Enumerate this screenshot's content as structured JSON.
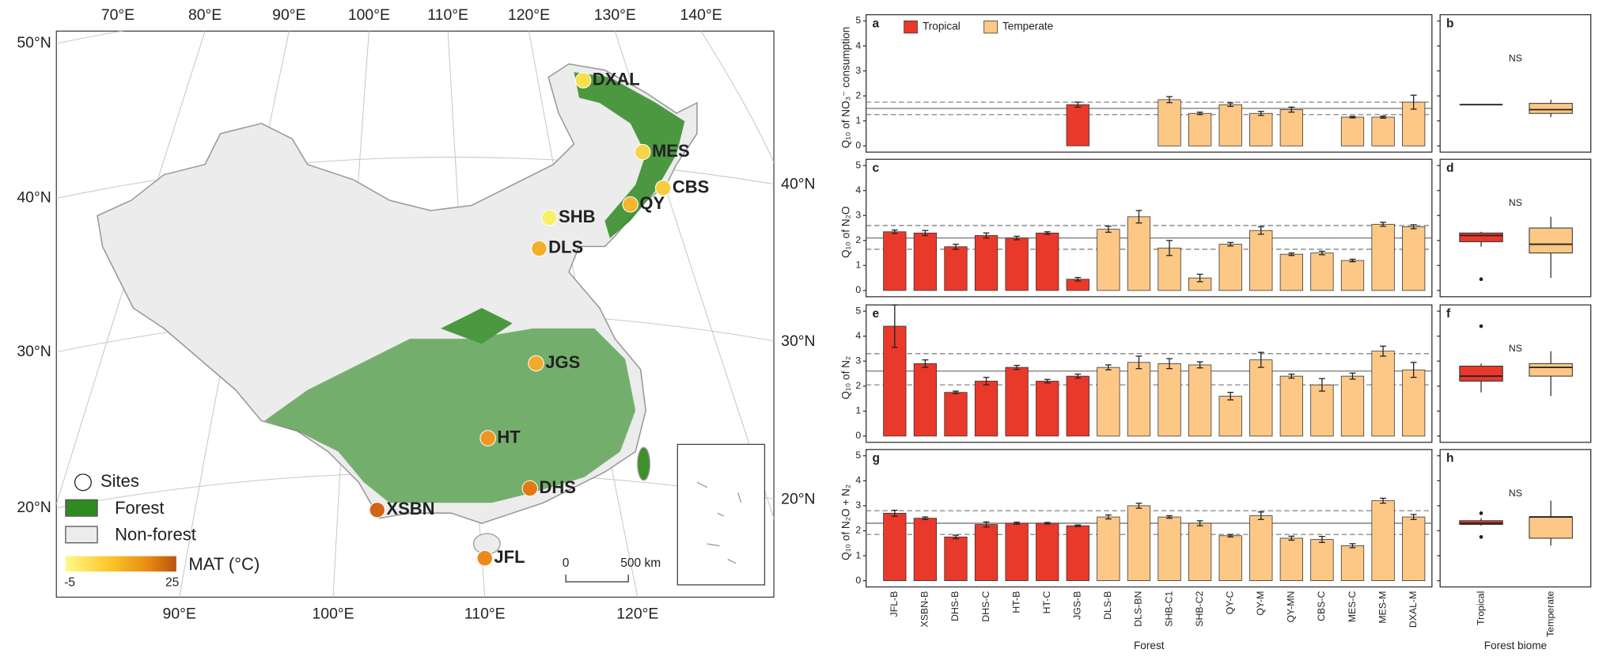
{
  "map": {
    "lon_top": [
      "70°E",
      "80°E",
      "90°E",
      "100°E",
      "110°E",
      "120°E",
      "130°E",
      "140°E"
    ],
    "lon_bottom": [
      "90°E",
      "100°E",
      "110°E",
      "120°E"
    ],
    "lat_left": [
      "50°N",
      "40°N",
      "30°N",
      "20°N"
    ],
    "lat_right": [
      "40°N",
      "30°N",
      "20°N"
    ],
    "sites": [
      {
        "name": "DXAL",
        "color": "#f7e04a"
      },
      {
        "name": "MES",
        "color": "#f8d446"
      },
      {
        "name": "CBS",
        "color": "#f6cc40"
      },
      {
        "name": "QY",
        "color": "#f4b530"
      },
      {
        "name": "SHB",
        "color": "#f9ef6a"
      },
      {
        "name": "DLS",
        "color": "#f3ae2c"
      },
      {
        "name": "JGS",
        "color": "#f2ab28"
      },
      {
        "name": "HT",
        "color": "#ee981f"
      },
      {
        "name": "DHS",
        "color": "#e27912"
      },
      {
        "name": "XSBN",
        "color": "#d26415"
      },
      {
        "name": "JFL",
        "color": "#eb8a1a"
      }
    ],
    "legend": {
      "sites": "Sites",
      "forest": "Forest",
      "non_forest": "Non-forest",
      "mat": "MAT (°C)",
      "mat_range": [
        -5,
        25
      ]
    },
    "scale_bar": [
      "0",
      "500 km"
    ]
  },
  "chart_data": [
    {
      "type": "bar",
      "xlabel": "Forest",
      "categories": [
        "JFL-B",
        "XSBN-B",
        "DHS-B",
        "DHS-C",
        "HT-B",
        "HT-C",
        "JGS-B",
        "DLS-B",
        "DLS-BN",
        "SHB-C1",
        "SHB-C2",
        "QY-C",
        "QY-M",
        "QY-MN",
        "CBS-C",
        "MES-C",
        "MES-M",
        "DXAL-M"
      ],
      "legend": [
        {
          "name": "Tropical",
          "color": "#e8392b"
        },
        {
          "name": "Temperate",
          "color": "#fdc886"
        }
      ],
      "ylim": [
        -0.25,
        5.25
      ],
      "yticks": [
        0,
        1,
        2,
        3,
        4,
        5
      ],
      "panels": [
        {
          "letter": "a",
          "ylabel": "Q₁₀ of NO₃⁻ consumption",
          "reference_lines": {
            "solid": 1.5,
            "dashed": [
              1.25,
              1.75
            ]
          },
          "series": [
            {
              "values": [
                null,
                null,
                null,
                null,
                null,
                null,
                1.65,
                null,
                null,
                null,
                null,
                null,
                null,
                null,
                null,
                null,
                null,
                null
              ],
              "errors": [
                null,
                null,
                null,
                null,
                null,
                null,
                0.1,
                null,
                null,
                null,
                null,
                null,
                null,
                null,
                null,
                null,
                null,
                null
              ]
            },
            {
              "values": [
                null,
                null,
                null,
                null,
                null,
                null,
                null,
                null,
                null,
                1.85,
                1.3,
                1.65,
                1.3,
                1.45,
                null,
                1.15,
                1.15,
                1.75
              ],
              "errors": [
                null,
                null,
                null,
                null,
                null,
                null,
                null,
                null,
                null,
                0.12,
                0.05,
                0.07,
                0.08,
                0.1,
                null,
                0.03,
                0.04,
                0.28
              ]
            }
          ]
        },
        {
          "letter": "c",
          "ylabel": "Q₁₀ of N₂O",
          "reference_lines": {
            "solid": 2.1,
            "dashed": [
              1.65,
              2.6
            ]
          },
          "series": [
            {
              "values": [
                2.35,
                2.3,
                1.75,
                2.2,
                2.1,
                2.3,
                0.45,
                null,
                null,
                null,
                null,
                null,
                null,
                null,
                null,
                null,
                null,
                null
              ],
              "errors": [
                0.07,
                0.1,
                0.1,
                0.1,
                0.07,
                0.05,
                0.07,
                null,
                null,
                null,
                null,
                null,
                null,
                null,
                null,
                null,
                null,
                null
              ]
            },
            {
              "values": [
                null,
                null,
                null,
                null,
                null,
                null,
                null,
                2.45,
                2.95,
                1.7,
                0.5,
                1.85,
                2.4,
                1.45,
                1.5,
                1.2,
                2.65,
                2.55
              ],
              "errors": [
                null,
                null,
                null,
                null,
                null,
                null,
                null,
                0.12,
                0.25,
                0.3,
                0.15,
                0.07,
                0.15,
                0.05,
                0.07,
                0.05,
                0.08,
                0.08
              ]
            }
          ]
        },
        {
          "letter": "e",
          "ylabel": "Q₁₀ of N₂",
          "reference_lines": {
            "solid": 2.6,
            "dashed": [
              2.05,
              3.3
            ]
          },
          "series": [
            {
              "values": [
                4.4,
                2.9,
                1.75,
                2.2,
                2.75,
                2.2,
                2.4,
                null,
                null,
                null,
                null,
                null,
                null,
                null,
                null,
                null,
                null,
                null
              ],
              "errors": [
                0.85,
                0.15,
                0.05,
                0.15,
                0.08,
                0.07,
                0.08,
                null,
                null,
                null,
                null,
                null,
                null,
                null,
                null,
                null,
                null,
                null
              ]
            },
            {
              "values": [
                null,
                null,
                null,
                null,
                null,
                null,
                null,
                2.75,
                2.95,
                2.9,
                2.85,
                1.6,
                3.05,
                2.4,
                2.05,
                2.4,
                3.4,
                2.65
              ],
              "errors": [
                null,
                null,
                null,
                null,
                null,
                null,
                null,
                0.1,
                0.25,
                0.2,
                0.12,
                0.15,
                0.3,
                0.08,
                0.25,
                0.12,
                0.2,
                0.3
              ]
            }
          ]
        },
        {
          "letter": "g",
          "ylabel": "Q₁₀ of N₂O + N₂",
          "reference_lines": {
            "solid": 2.3,
            "dashed": [
              1.85,
              2.8
            ]
          },
          "series": [
            {
              "values": [
                2.7,
                2.5,
                1.75,
                2.25,
                2.3,
                2.3,
                2.2,
                null,
                null,
                null,
                null,
                null,
                null,
                null,
                null,
                null,
                null,
                null
              ],
              "errors": [
                0.12,
                0.05,
                0.07,
                0.1,
                0.04,
                0.03,
                0.03,
                null,
                null,
                null,
                null,
                null,
                null,
                null,
                null,
                null,
                null,
                null
              ]
            },
            {
              "values": [
                null,
                null,
                null,
                null,
                null,
                null,
                null,
                2.55,
                3.0,
                2.55,
                2.3,
                1.8,
                2.6,
                1.7,
                1.65,
                1.4,
                3.2,
                2.55
              ],
              "errors": [
                null,
                null,
                null,
                null,
                null,
                null,
                null,
                0.08,
                0.1,
                0.05,
                0.1,
                0.05,
                0.15,
                0.08,
                0.12,
                0.08,
                0.1,
                0.1
              ]
            }
          ]
        }
      ]
    },
    {
      "type": "box",
      "xlabel": "Forest biome",
      "categories": [
        "Tropical",
        "Temperate"
      ],
      "colors": [
        "#e8392b",
        "#fdc886"
      ],
      "ylim": [
        -0.25,
        5.25
      ],
      "yticks": [
        0,
        1,
        2,
        3,
        4,
        5
      ],
      "panels": [
        {
          "letter": "b",
          "annotation": "NS",
          "boxes": [
            {
              "min": 1.65,
              "q1": 1.65,
              "median": 1.65,
              "q3": 1.65,
              "max": 1.65,
              "outliers": []
            },
            {
              "min": 1.15,
              "q1": 1.3,
              "median": 1.45,
              "q3": 1.7,
              "max": 1.85,
              "outliers": []
            }
          ]
        },
        {
          "letter": "d",
          "annotation": "NS",
          "boxes": [
            {
              "min": 1.75,
              "q1": 1.95,
              "median": 2.2,
              "q3": 2.3,
              "max": 2.35,
              "outliers": [
                0.45
              ]
            },
            {
              "min": 0.5,
              "q1": 1.5,
              "median": 1.85,
              "q3": 2.5,
              "max": 2.95,
              "outliers": []
            }
          ]
        },
        {
          "letter": "f",
          "annotation": "NS",
          "boxes": [
            {
              "min": 1.75,
              "q1": 2.2,
              "median": 2.4,
              "q3": 2.8,
              "max": 2.9,
              "outliers": [
                4.4
              ]
            },
            {
              "min": 1.6,
              "q1": 2.4,
              "median": 2.75,
              "q3": 2.9,
              "max": 3.4,
              "outliers": []
            }
          ]
        },
        {
          "letter": "h",
          "annotation": "NS",
          "boxes": [
            {
              "min": 2.2,
              "q1": 2.25,
              "median": 2.3,
              "q3": 2.4,
              "max": 2.5,
              "outliers": [
                2.7,
                1.75
              ]
            },
            {
              "min": 1.4,
              "q1": 1.7,
              "median": 2.55,
              "q3": 2.55,
              "max": 3.2,
              "outliers": []
            }
          ]
        }
      ]
    }
  ]
}
